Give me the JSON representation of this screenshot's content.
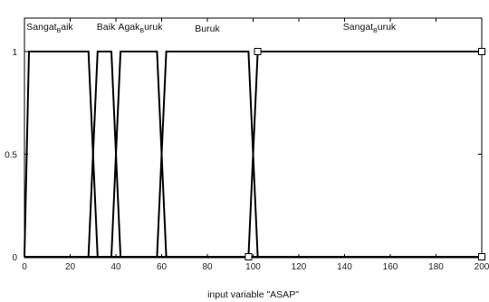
{
  "chart_data": {
    "type": "line",
    "title": "",
    "xlabel": "input variable \"ASAP\"",
    "ylabel": "",
    "xlim": [
      0,
      200
    ],
    "ylim": [
      0,
      1
    ],
    "xticks": [
      "0",
      "20",
      "40",
      "60",
      "80",
      "100",
      "120",
      "140",
      "160",
      "180",
      "200"
    ],
    "yticks": [
      "0",
      "0.5",
      "1"
    ],
    "grid": false,
    "legend": "none",
    "series": [
      {
        "name": "SangatBaik",
        "label_main": "Sangat",
        "label_sub": "B",
        "label_rest": "aik",
        "x": [
          0,
          2,
          28,
          32
        ],
        "y": [
          0,
          1,
          1,
          0
        ]
      },
      {
        "name": "Baik",
        "label_main": "Baik",
        "label_sub": "",
        "label_rest": "",
        "x": [
          28,
          32,
          38,
          42
        ],
        "y": [
          0,
          1,
          1,
          0
        ]
      },
      {
        "name": "AgakBuruk",
        "label_main": "Agak",
        "label_sub": "B",
        "label_rest": "uruk",
        "x": [
          38,
          42,
          58,
          62
        ],
        "y": [
          0,
          1,
          1,
          0
        ]
      },
      {
        "name": "Buruk",
        "label_main": "Buruk",
        "label_sub": "",
        "label_rest": "",
        "x": [
          58,
          62,
          98,
          102
        ],
        "y": [
          0,
          1,
          1,
          0
        ]
      },
      {
        "name": "SangatBuruk",
        "label_main": "Sangat",
        "label_sub": "B",
        "label_rest": "uruk",
        "x": [
          98,
          102,
          200
        ],
        "y": [
          0,
          1,
          1
        ]
      }
    ],
    "line_color": "#000000"
  }
}
